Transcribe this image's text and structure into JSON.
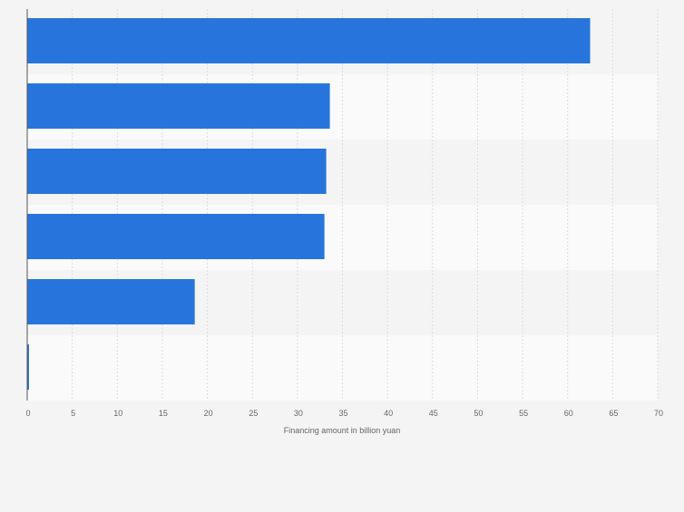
{
  "chart_data": {
    "type": "bar",
    "orientation": "horizontal",
    "categories": [
      "",
      "",
      "",
      "",
      "",
      ""
    ],
    "values": [
      62.5,
      33.6,
      33.2,
      33.0,
      18.6,
      0.2
    ],
    "xlabel": "Financing amount in billion yuan",
    "ylabel": "",
    "xlim": [
      0,
      70
    ],
    "xticks": [
      "0",
      "5",
      "10",
      "15",
      "20",
      "25",
      "30",
      "35",
      "40",
      "45",
      "50",
      "55",
      "60",
      "65",
      "70"
    ],
    "grid": true,
    "bar_color": "#2775dc",
    "band_colors": [
      "#f4f4f4",
      "#fafafa"
    ],
    "background": "#f4f4f4"
  }
}
